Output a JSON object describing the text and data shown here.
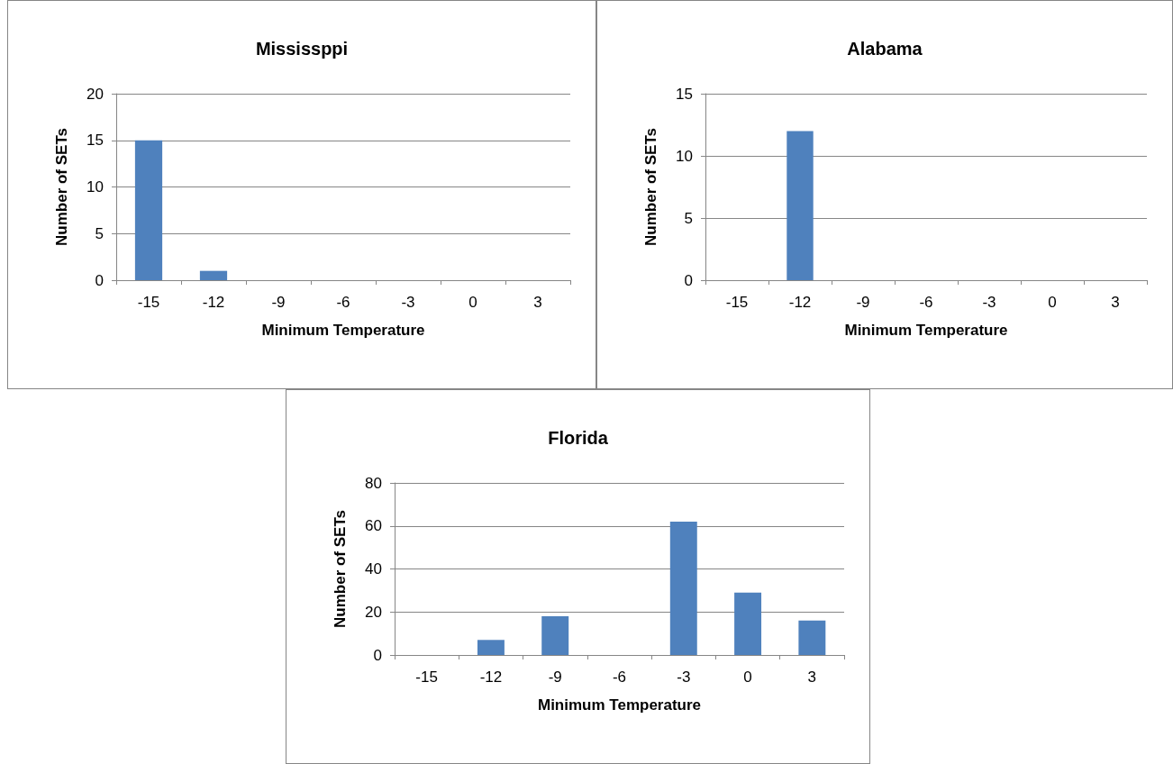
{
  "chart_data": [
    {
      "type": "bar",
      "title": "Mississppi",
      "xlabel": "Minimum Temperature",
      "ylabel": "Number of SETs",
      "categories": [
        "-15",
        "-12",
        "-9",
        "-6",
        "-3",
        "0",
        "3"
      ],
      "values": [
        15,
        1,
        0,
        0,
        0,
        0,
        0
      ],
      "color": "#4f81bd",
      "ylim": [
        0,
        20
      ],
      "yticks": [
        0,
        5,
        10,
        15,
        20
      ],
      "grid": "y"
    },
    {
      "type": "bar",
      "title": "Alabama",
      "xlabel": "Minimum Temperature",
      "ylabel": "Number of SETs",
      "categories": [
        "-15",
        "-12",
        "-9",
        "-6",
        "-3",
        "0",
        "3"
      ],
      "values": [
        0,
        12,
        0,
        0,
        0,
        0,
        0
      ],
      "color": "#4f81bd",
      "ylim": [
        0,
        15
      ],
      "yticks": [
        0,
        5,
        10,
        15
      ],
      "grid": "y"
    },
    {
      "type": "bar",
      "title": "Florida",
      "xlabel": "Minimum Temperature",
      "ylabel": "Number of SETs",
      "categories": [
        "-15",
        "-12",
        "-9",
        "-6",
        "-3",
        "0",
        "3"
      ],
      "values": [
        0,
        7,
        18,
        0,
        62,
        29,
        16
      ],
      "color": "#4f81bd",
      "ylim": [
        0,
        80
      ],
      "yticks": [
        0,
        20,
        40,
        60,
        80
      ],
      "grid": "y"
    }
  ]
}
